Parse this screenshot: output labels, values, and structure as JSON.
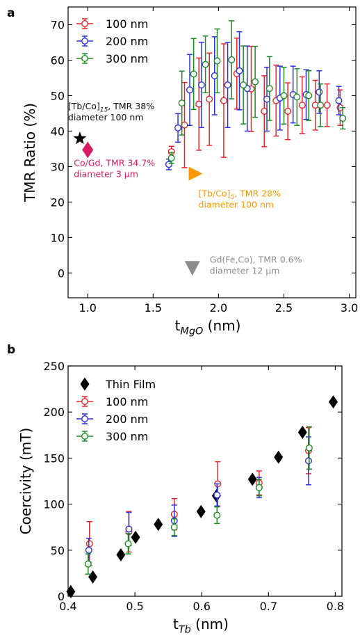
{
  "chart_data": [
    {
      "panel_label": "a",
      "type": "scatter",
      "xlabel": {
        "main": "t",
        "sub": "MgO",
        "unit": " (nm)"
      },
      "ylabel": "TMR Ratio (%)",
      "xlim": [
        0.85,
        3.05
      ],
      "ylim": [
        -7,
        75
      ],
      "xticks": [
        1.0,
        1.5,
        2.0,
        2.5,
        3.0
      ],
      "xtick_labels": [
        "1.0",
        "1.5",
        "2.0",
        "2.5",
        "3.0"
      ],
      "yticks": [
        0,
        10,
        20,
        30,
        40,
        50,
        60,
        70
      ],
      "ytick_labels": [
        "0",
        "10",
        "20",
        "30",
        "40",
        "50",
        "60",
        "70"
      ],
      "grid": false,
      "legend_position": "top-left",
      "series": [
        {
          "name": "100 nm",
          "color": "#e8262a",
          "marker": "open-circle-errorbar",
          "points": [
            {
              "x": 1.64,
              "y": 34.2,
              "err": 1.5
            },
            {
              "x": 1.74,
              "y": 41.7,
              "err": 12
            },
            {
              "x": 1.85,
              "y": 47.6,
              "err": 13
            },
            {
              "x": 1.93,
              "y": 49.0,
              "err": 13
            },
            {
              "x": 2.04,
              "y": 48.6,
              "err": 16
            },
            {
              "x": 2.14,
              "y": 56.2,
              "err": 10
            },
            {
              "x": 2.25,
              "y": 51.9,
              "err": 12
            },
            {
              "x": 2.35,
              "y": 45.6,
              "err": 10
            },
            {
              "x": 2.44,
              "y": 48.6,
              "err": 10
            },
            {
              "x": 2.53,
              "y": 45.6,
              "err": 8
            },
            {
              "x": 2.64,
              "y": 47.3,
              "err": 8
            },
            {
              "x": 2.74,
              "y": 47.3,
              "err": 7
            },
            {
              "x": 2.83,
              "y": 47.3,
              "err": 6
            },
            {
              "x": 2.93,
              "y": 46.6,
              "err": 5
            }
          ]
        },
        {
          "name": "200 nm",
          "color": "#2b33e0",
          "marker": "open-circle-errorbar",
          "points": [
            {
              "x": 1.62,
              "y": 30.6,
              "err": 1.5
            },
            {
              "x": 1.69,
              "y": 40.9,
              "err": 4
            },
            {
              "x": 1.78,
              "y": 51.6,
              "err": 10
            },
            {
              "x": 1.87,
              "y": 53.0,
              "err": 12
            },
            {
              "x": 1.97,
              "y": 55.6,
              "err": 11
            },
            {
              "x": 2.07,
              "y": 53.0,
              "err": 12
            },
            {
              "x": 2.16,
              "y": 57.0,
              "err": 11
            },
            {
              "x": 2.22,
              "y": 52.0,
              "err": 12
            },
            {
              "x": 2.37,
              "y": 49.0,
              "err": 9
            },
            {
              "x": 2.47,
              "y": 49.3,
              "err": 9
            },
            {
              "x": 2.57,
              "y": 50.3,
              "err": 8
            },
            {
              "x": 2.67,
              "y": 50.3,
              "err": 7
            },
            {
              "x": 2.77,
              "y": 51.0,
              "err": 6
            },
            {
              "x": 2.92,
              "y": 48.6,
              "err": 4
            }
          ]
        },
        {
          "name": "300 nm",
          "color": "#1e8a24",
          "marker": "open-circle-errorbar",
          "points": [
            {
              "x": 1.64,
              "y": 32.4,
              "err": 1.5
            },
            {
              "x": 1.72,
              "y": 47.9,
              "err": 9
            },
            {
              "x": 1.81,
              "y": 56.1,
              "err": 10
            },
            {
              "x": 1.9,
              "y": 58.8,
              "err": 8
            },
            {
              "x": 1.99,
              "y": 59.8,
              "err": 9
            },
            {
              "x": 2.1,
              "y": 60.1,
              "err": 11
            },
            {
              "x": 2.19,
              "y": 53.0,
              "err": 11
            },
            {
              "x": 2.28,
              "y": 53.9,
              "err": 10
            },
            {
              "x": 2.39,
              "y": 52.0,
              "err": 9
            },
            {
              "x": 2.5,
              "y": 50.0,
              "err": 8
            },
            {
              "x": 2.6,
              "y": 49.6,
              "err": 8
            },
            {
              "x": 2.69,
              "y": 50.0,
              "err": 7
            },
            {
              "x": 2.78,
              "y": 47.3,
              "err": 6
            },
            {
              "x": 2.95,
              "y": 43.6,
              "err": 3
            }
          ]
        }
      ],
      "references": [
        {
          "label_main": "[Tb/Co]",
          "label_sub": "15",
          "label_rest": ", TMR 38%",
          "label_line2": "diameter 100 nm",
          "x": 0.94,
          "y": 37.9,
          "marker": "star",
          "color": "#000000"
        },
        {
          "label_main": "Co/Gd, TMR 34.7%",
          "label_sub": "",
          "label_rest": "",
          "label_line2": "diameter 3 µm",
          "x": 1.0,
          "y": 34.7,
          "marker": "diamond",
          "color": "#d81b60"
        },
        {
          "label_main": "[Tb/Co]",
          "label_sub": "5",
          "label_rest": ", TMR 28%",
          "label_line2": "diameter 100 nm",
          "x": 1.82,
          "y": 28.0,
          "marker": "triangle-right",
          "color": "#ff9800"
        },
        {
          "label_main": "Gd(Fe,Co), TMR 0.6%",
          "label_sub": "",
          "label_rest": "",
          "label_line2": "diameter 12 µm",
          "x": 1.8,
          "y": 0.6,
          "marker": "triangle-down",
          "color": "#8c8c8c"
        }
      ]
    },
    {
      "panel_label": "b",
      "type": "scatter",
      "xlabel": {
        "main": "t",
        "sub": "Tb",
        "unit": " (nm)"
      },
      "ylabel": "Coercivity (mT)",
      "xlim": [
        0.4,
        0.81
      ],
      "ylim": [
        0,
        250
      ],
      "xticks": [
        0.4,
        0.5,
        0.6,
        0.7,
        0.8
      ],
      "xtick_labels": [
        "0.4",
        "0.5",
        "0.6",
        "0.7",
        "0.8"
      ],
      "yticks": [
        0,
        50,
        100,
        150,
        200,
        250
      ],
      "ytick_labels": [
        "0",
        "50",
        "100",
        "150",
        "200",
        "250"
      ],
      "grid": false,
      "legend_position": "top-left",
      "series": [
        {
          "name": "Thin Film",
          "color": "#000000",
          "marker": "filled-diamond",
          "points": [
            {
              "x": 0.404,
              "y": 5
            },
            {
              "x": 0.437,
              "y": 21
            },
            {
              "x": 0.479,
              "y": 45
            },
            {
              "x": 0.501,
              "y": 64
            },
            {
              "x": 0.535,
              "y": 78
            },
            {
              "x": 0.599,
              "y": 92
            },
            {
              "x": 0.622,
              "y": 109
            },
            {
              "x": 0.676,
              "y": 127
            },
            {
              "x": 0.715,
              "y": 151
            },
            {
              "x": 0.751,
              "y": 178
            },
            {
              "x": 0.797,
              "y": 211
            }
          ]
        },
        {
          "name": "100 nm",
          "color": "#e8262a",
          "marker": "open-circle-errorbar",
          "points": [
            {
              "x": 0.432,
              "y": 57,
              "err": 24
            },
            {
              "x": 0.491,
              "y": 70,
              "err": 22
            },
            {
              "x": 0.559,
              "y": 89,
              "err": 17
            },
            {
              "x": 0.624,
              "y": 122,
              "err": 24
            },
            {
              "x": 0.686,
              "y": 123,
              "err": 13
            },
            {
              "x": 0.76,
              "y": 158,
              "err": 25
            }
          ]
        },
        {
          "name": "200 nm",
          "color": "#2b33e0",
          "marker": "open-circle-errorbar",
          "points": [
            {
              "x": 0.431,
              "y": 50,
              "err": 13
            },
            {
              "x": 0.491,
              "y": 73,
              "err": 18
            },
            {
              "x": 0.559,
              "y": 82,
              "err": 17
            },
            {
              "x": 0.623,
              "y": 110,
              "err": 12
            },
            {
              "x": 0.686,
              "y": 118,
              "err": 11
            },
            {
              "x": 0.76,
              "y": 147,
              "err": 26
            }
          ]
        },
        {
          "name": "300 nm",
          "color": "#1e8a24",
          "marker": "open-circle-errorbar",
          "points": [
            {
              "x": 0.43,
              "y": 35,
              "err": 11
            },
            {
              "x": 0.49,
              "y": 57,
              "err": 11
            },
            {
              "x": 0.559,
              "y": 75,
              "err": 9
            },
            {
              "x": 0.623,
              "y": 88,
              "err": 9
            },
            {
              "x": 0.686,
              "y": 118,
              "err": 9
            },
            {
              "x": 0.761,
              "y": 161,
              "err": 23
            }
          ]
        }
      ]
    }
  ]
}
